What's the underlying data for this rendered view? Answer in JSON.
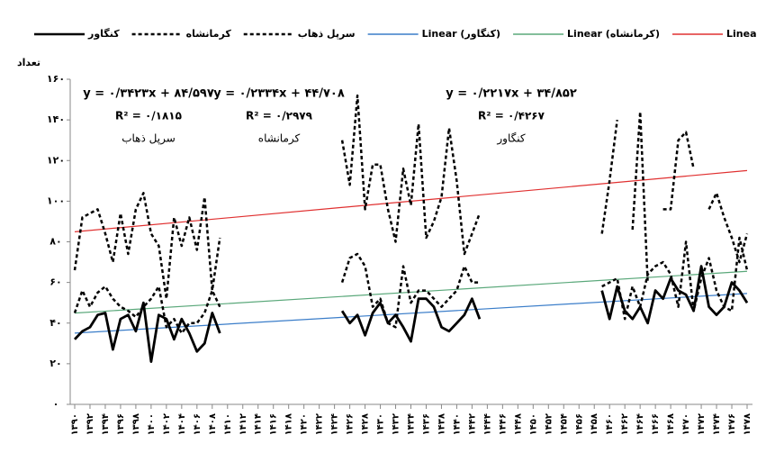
{
  "chart_data": {
    "type": "line",
    "y_label": "تعداد",
    "x": [
      1390,
      1391,
      1392,
      1393,
      1394,
      1395,
      1396,
      1397,
      1398,
      1399,
      1400,
      1401,
      1402,
      1403,
      1404,
      1405,
      1406,
      1407,
      1408,
      1409,
      1410,
      1411,
      1412,
      1413,
      1414,
      1415,
      1416,
      1417,
      1418,
      1419,
      1420,
      1421,
      1422,
      1423,
      1424,
      1425,
      1426,
      1427,
      1428,
      1429,
      1430,
      1431,
      1432,
      1433,
      1434,
      1435,
      1436,
      1437,
      1438,
      1439,
      1440,
      1441,
      1442,
      1443,
      1444,
      1445,
      1446,
      1447,
      1448,
      1449,
      1450,
      1451,
      1452,
      1453,
      1454,
      1455,
      1456,
      1457,
      1458,
      1459,
      1460,
      1461,
      1462,
      1463,
      1464,
      1465,
      1466,
      1467,
      1468,
      1469,
      1470,
      1471,
      1472,
      1473,
      1474,
      1475,
      1476,
      1477,
      1478
    ],
    "xlim": [
      1390,
      1478
    ],
    "xticks": [
      {
        "value": 1390,
        "label": "۱۳۹۰"
      },
      {
        "value": 1392,
        "label": "۱۳۹۲"
      },
      {
        "value": 1394,
        "label": "۱۳۹۴"
      },
      {
        "value": 1396,
        "label": "۱۳۹۶"
      },
      {
        "value": 1398,
        "label": "۱۳۹۸"
      },
      {
        "value": 1400,
        "label": "۱۴۰۰"
      },
      {
        "value": 1402,
        "label": "۱۴۰۲"
      },
      {
        "value": 1404,
        "label": "۱۴۰۴"
      },
      {
        "value": 1406,
        "label": "۱۴۰۶"
      },
      {
        "value": 1408,
        "label": "۱۴۰۸"
      },
      {
        "value": 1410,
        "label": "۱۴۱۰"
      },
      {
        "value": 1412,
        "label": "۱۴۱۲"
      },
      {
        "value": 1414,
        "label": "۱۴۱۴"
      },
      {
        "value": 1416,
        "label": "۱۴۱۶"
      },
      {
        "value": 1418,
        "label": "۱۴۱۸"
      },
      {
        "value": 1420,
        "label": "۱۴۲۰"
      },
      {
        "value": 1422,
        "label": "۱۴۲۲"
      },
      {
        "value": 1424,
        "label": "۱۴۲۴"
      },
      {
        "value": 1426,
        "label": "۱۴۲۶"
      },
      {
        "value": 1428,
        "label": "۱۴۲۸"
      },
      {
        "value": 1430,
        "label": "۱۴۳۰"
      },
      {
        "value": 1432,
        "label": "۱۴۳۲"
      },
      {
        "value": 1434,
        "label": "۱۴۳۴"
      },
      {
        "value": 1436,
        "label": "۱۴۳۶"
      },
      {
        "value": 1438,
        "label": "۱۴۳۸"
      },
      {
        "value": 1440,
        "label": "۱۴۴۰"
      },
      {
        "value": 1442,
        "label": "۱۴۴۲"
      },
      {
        "value": 1444,
        "label": "۱۴۴۴"
      },
      {
        "value": 1446,
        "label": "۱۴۴۶"
      },
      {
        "value": 1448,
        "label": "۱۴۴۸"
      },
      {
        "value": 1450,
        "label": "۱۴۵۰"
      },
      {
        "value": 1452,
        "label": "۱۴۵۲"
      },
      {
        "value": 1454,
        "label": "۱۴۵۴"
      },
      {
        "value": 1456,
        "label": "۱۴۵۶"
      },
      {
        "value": 1458,
        "label": "۱۴۵۸"
      },
      {
        "value": 1460,
        "label": "۱۴۶۰"
      },
      {
        "value": 1462,
        "label": "۱۴۶۲"
      },
      {
        "value": 1464,
        "label": "۱۴۶۴"
      },
      {
        "value": 1466,
        "label": "۱۴۶۶"
      },
      {
        "value": 1468,
        "label": "۱۴۶۸"
      },
      {
        "value": 1470,
        "label": "۱۴۷۰"
      },
      {
        "value": 1472,
        "label": "۱۴۷۲"
      },
      {
        "value": 1474,
        "label": "۱۴۷۴"
      },
      {
        "value": 1476,
        "label": "۱۴۷۶"
      },
      {
        "value": 1478,
        "label": "۱۴۷۸"
      }
    ],
    "ylim": [
      0,
      160
    ],
    "yticks": [
      {
        "value": 0,
        "label": "۰"
      },
      {
        "value": 20,
        "label": "۲۰"
      },
      {
        "value": 40,
        "label": "۴۰"
      },
      {
        "value": 60,
        "label": "۶۰"
      },
      {
        "value": 80,
        "label": "۸۰"
      },
      {
        "value": 100,
        "label": "۱۰۰"
      },
      {
        "value": 120,
        "label": "۱۲۰"
      },
      {
        "value": 140,
        "label": "۱۴۰"
      },
      {
        "value": 160,
        "label": "۱۶۰"
      }
    ],
    "grid": false,
    "legend": "top",
    "series": [
      {
        "name": "کنگاور",
        "color": "#000000",
        "dash": false,
        "values": [
          32,
          36,
          38,
          44,
          45,
          27,
          42,
          44,
          36,
          50,
          21,
          44,
          42,
          32,
          42,
          35,
          26,
          30,
          45,
          35,
          null,
          null,
          null,
          null,
          null,
          null,
          null,
          null,
          null,
          null,
          null,
          null,
          null,
          null,
          null,
          46,
          40,
          44,
          34,
          45,
          50,
          40,
          44,
          38,
          31,
          52,
          52,
          48,
          38,
          36,
          40,
          44,
          52,
          42,
          null,
          null,
          null,
          null,
          null,
          null,
          null,
          null,
          null,
          null,
          null,
          null,
          null,
          null,
          null,
          56,
          42,
          58,
          46,
          42,
          48,
          40,
          56,
          52,
          62,
          56,
          54,
          46,
          68,
          48,
          44,
          48,
          60,
          56,
          50
        ]
      },
      {
        "name": "کرمانشاه",
        "color": "#000000",
        "dash": true,
        "values": [
          45,
          56,
          48,
          55,
          58,
          52,
          48,
          46,
          43,
          48,
          52,
          58,
          38,
          42,
          35,
          40,
          40,
          45,
          56,
          48,
          null,
          null,
          null,
          null,
          null,
          null,
          null,
          null,
          null,
          null,
          null,
          null,
          null,
          null,
          null,
          60,
          72,
          74,
          68,
          48,
          52,
          40,
          38,
          68,
          50,
          56,
          56,
          52,
          48,
          52,
          56,
          68,
          60,
          60,
          null,
          null,
          null,
          null,
          null,
          null,
          null,
          null,
          null,
          null,
          null,
          null,
          null,
          null,
          null,
          58,
          60,
          62,
          42,
          58,
          48,
          64,
          68,
          70,
          64,
          48,
          80,
          46,
          62,
          72,
          56,
          48,
          46,
          82,
          66
        ]
      },
      {
        "name": "سرپل ذهاب",
        "color": "#000000",
        "dash": true,
        "values": [
          66,
          92,
          94,
          96,
          84,
          70,
          94,
          74,
          96,
          104,
          84,
          78,
          52,
          92,
          78,
          92,
          76,
          102,
          56,
          82,
          null,
          null,
          null,
          null,
          null,
          null,
          null,
          null,
          null,
          null,
          null,
          null,
          null,
          null,
          null,
          130,
          108,
          152,
          96,
          118,
          118,
          96,
          80,
          116,
          98,
          138,
          82,
          90,
          102,
          136,
          110,
          74,
          84,
          94,
          null,
          null,
          null,
          null,
          null,
          null,
          null,
          null,
          null,
          null,
          null,
          null,
          null,
          null,
          null,
          84,
          110,
          140,
          null,
          86,
          144,
          60,
          null,
          96,
          96,
          130,
          134,
          116,
          null,
          96,
          104,
          92,
          82,
          70,
          84
        ]
      }
    ],
    "trendlines": [
      {
        "name": "Linear (کنگاور)",
        "color": "#3a7dc9",
        "slope": 0.2217,
        "intercept": 34.852,
        "equation": "y = ۰/۲۲۱۷x + ۳۴/۸۵۲",
        "r2": 0.4267,
        "r2_label": "R² = ۰/۴۲۶۷",
        "label": "کنگاور"
      },
      {
        "name": "Linear (کرمانشاه)",
        "color": "#5aa87a",
        "slope": 0.2334,
        "intercept": 44.708,
        "equation": "y = ۰/۲۳۳۴x + ۴۴/۷۰۸",
        "r2": 0.2979,
        "r2_label": "R² = ۰/۲۹۷۹",
        "label": "کرمانشاه"
      },
      {
        "name": "Linear (سرپل ذهاب)",
        "color": "#e03030",
        "slope": 0.3423,
        "intercept": 84.597,
        "equation": "y = ۰/۳۴۲۳x + ۸۴/۵۹۷",
        "r2": 0.1815,
        "r2_label": "R² = ۰/۱۸۱۵",
        "label": "سرپل ذهاب"
      }
    ]
  }
}
